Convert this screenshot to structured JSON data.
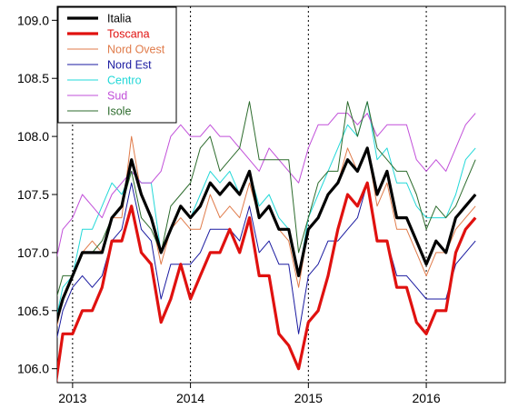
{
  "chart_data": {
    "type": "line",
    "title": "",
    "xlabel": "",
    "ylabel": "",
    "xlim": [
      2012.87,
      2016.67
    ],
    "ylim": [
      105.88,
      109.12
    ],
    "x_ticks": [
      2013,
      2014,
      2015,
      2016
    ],
    "x_tick_labels": [
      "2013",
      "2014",
      "2015",
      "2016"
    ],
    "y_ticks": [
      106.0,
      106.5,
      107.0,
      107.5,
      108.0,
      108.5,
      109.0
    ],
    "y_tick_labels": [
      "106.0",
      "106.5",
      "107.0",
      "107.5",
      "108.0",
      "108.5",
      "109.0"
    ],
    "vertical_reference_lines": [
      2013,
      2014,
      2015,
      2016
    ],
    "legend_position": "top-left",
    "x": [
      2012.833,
      2012.917,
      2013.0,
      2013.083,
      2013.167,
      2013.25,
      2013.333,
      2013.417,
      2013.5,
      2013.583,
      2013.667,
      2013.75,
      2013.833,
      2013.917,
      2014.0,
      2014.083,
      2014.167,
      2014.25,
      2014.333,
      2014.417,
      2014.5,
      2014.583,
      2014.667,
      2014.75,
      2014.833,
      2014.917,
      2015.0,
      2015.083,
      2015.167,
      2015.25,
      2015.333,
      2015.417,
      2015.5,
      2015.583,
      2015.667,
      2015.75,
      2015.833,
      2015.917,
      2016.0,
      2016.083,
      2016.167,
      2016.25,
      2016.333,
      2016.417
    ],
    "series": [
      {
        "name": "Italia",
        "color": "#000000",
        "width": 3.2,
        "values": [
          106.3,
          106.6,
          106.8,
          107.0,
          107.0,
          107.0,
          107.3,
          107.4,
          107.8,
          107.5,
          107.3,
          107.0,
          107.2,
          107.4,
          107.3,
          107.4,
          107.6,
          107.5,
          107.6,
          107.5,
          107.7,
          107.3,
          107.4,
          107.2,
          107.2,
          106.8,
          107.2,
          107.3,
          107.5,
          107.6,
          107.8,
          107.7,
          107.9,
          107.5,
          107.7,
          107.3,
          107.3,
          107.1,
          106.9,
          107.1,
          107.0,
          107.3,
          107.4,
          107.5
        ]
      },
      {
        "name": "Toscana",
        "color": "#e0110f",
        "width": 3.2,
        "values": [
          105.7,
          106.3,
          106.3,
          106.5,
          106.5,
          106.7,
          107.1,
          107.1,
          107.4,
          107.0,
          106.9,
          106.4,
          106.6,
          106.9,
          106.6,
          106.8,
          107.0,
          107.0,
          107.2,
          107.0,
          107.3,
          106.8,
          106.8,
          106.3,
          106.2,
          106.0,
          106.4,
          106.5,
          106.8,
          107.2,
          107.5,
          107.4,
          107.6,
          107.1,
          107.1,
          106.7,
          106.7,
          106.4,
          106.3,
          106.5,
          106.5,
          107.0,
          107.2,
          107.3
        ]
      },
      {
        "name": "Nord Ovest",
        "color": "#e07b4a",
        "width": 1,
        "values": [
          106.2,
          106.6,
          106.8,
          107.0,
          107.1,
          107.0,
          107.3,
          107.3,
          108.0,
          107.5,
          107.3,
          106.9,
          107.2,
          107.3,
          107.2,
          107.2,
          107.5,
          107.3,
          107.4,
          107.3,
          107.6,
          107.3,
          107.4,
          107.2,
          107.1,
          106.7,
          107.2,
          107.3,
          107.5,
          107.6,
          107.9,
          107.7,
          107.9,
          107.4,
          107.6,
          107.2,
          107.2,
          107.0,
          106.8,
          107.0,
          107.0,
          107.2,
          107.3,
          107.4
        ]
      },
      {
        "name": "Nord Est",
        "color": "#1a1aa0",
        "width": 1,
        "values": [
          106.1,
          106.5,
          106.7,
          106.8,
          106.7,
          106.8,
          107.1,
          107.2,
          107.6,
          107.2,
          107.1,
          106.6,
          106.9,
          106.9,
          106.9,
          107.0,
          107.2,
          107.2,
          107.2,
          107.1,
          107.4,
          107.0,
          107.1,
          106.9,
          106.9,
          106.3,
          106.8,
          106.9,
          107.1,
          107.1,
          107.2,
          107.3,
          107.6,
          107.1,
          107.1,
          106.8,
          106.8,
          106.7,
          106.6,
          106.6,
          106.6,
          106.9,
          107.0,
          107.1
        ]
      },
      {
        "name": "Centro",
        "color": "#22d8d8",
        "width": 1,
        "values": [
          106.3,
          106.7,
          106.8,
          107.2,
          107.2,
          107.4,
          107.6,
          107.5,
          107.7,
          107.6,
          107.6,
          107.0,
          107.2,
          107.4,
          107.3,
          107.5,
          107.7,
          107.6,
          107.7,
          107.5,
          107.7,
          107.4,
          107.5,
          107.3,
          107.2,
          106.8,
          107.3,
          107.5,
          107.7,
          107.9,
          108.1,
          108.0,
          108.3,
          107.8,
          107.9,
          107.6,
          107.6,
          107.4,
          107.3,
          107.3,
          107.3,
          107.5,
          107.8,
          107.9
        ]
      },
      {
        "name": "Sud",
        "color": "#c14fd9",
        "width": 1,
        "values": [
          106.8,
          107.2,
          107.3,
          107.5,
          107.4,
          107.3,
          107.5,
          107.6,
          107.7,
          107.6,
          107.6,
          107.7,
          108.0,
          108.1,
          108.0,
          108.0,
          108.1,
          108.0,
          108.0,
          107.9,
          107.8,
          107.7,
          107.9,
          107.8,
          107.7,
          107.6,
          107.9,
          108.1,
          108.1,
          108.2,
          108.2,
          108.1,
          108.2,
          108.0,
          108.1,
          108.1,
          108.1,
          107.8,
          107.7,
          107.8,
          107.7,
          107.9,
          108.1,
          108.2
        ]
      },
      {
        "name": "Isole",
        "color": "#2c6b2c",
        "width": 1,
        "values": [
          106.5,
          106.8,
          106.8,
          107.0,
          107.0,
          107.1,
          107.3,
          107.4,
          107.7,
          107.3,
          107.2,
          107.0,
          107.4,
          107.5,
          107.6,
          107.9,
          108.0,
          107.7,
          107.8,
          107.9,
          108.3,
          107.8,
          107.8,
          107.8,
          107.8,
          107.0,
          107.3,
          107.6,
          107.7,
          107.7,
          108.3,
          108.0,
          108.3,
          107.9,
          107.8,
          107.7,
          107.7,
          107.5,
          107.2,
          107.4,
          107.3,
          107.4,
          107.6,
          107.8
        ]
      }
    ]
  }
}
